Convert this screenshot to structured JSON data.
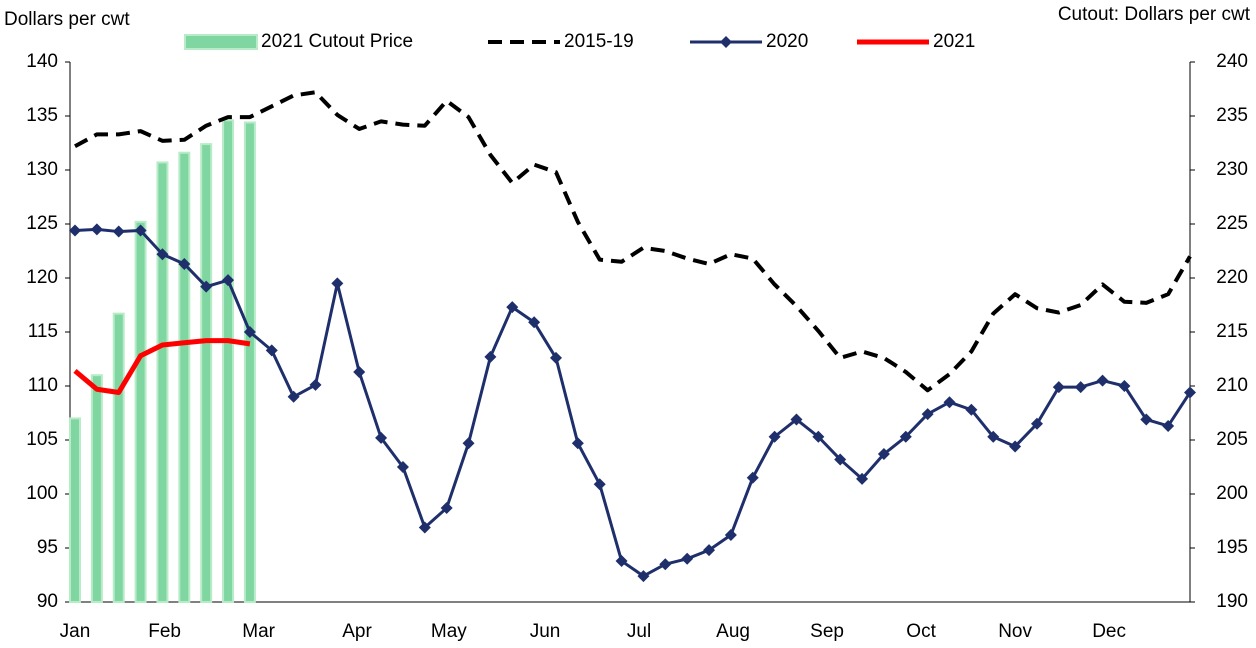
{
  "chart_data": {
    "type": "combo",
    "y_label": "Dollars per cwt",
    "y2_label": "Cutout: Dollars per cwt",
    "x": [
      1,
      2,
      3,
      4,
      5,
      6,
      7,
      8,
      9,
      10,
      11,
      12,
      13,
      14,
      15,
      16,
      17,
      18,
      19,
      20,
      21,
      22,
      23,
      24,
      25,
      26,
      27,
      28,
      29,
      30,
      31,
      32,
      33,
      34,
      35,
      36,
      37,
      38,
      39,
      40,
      41,
      42,
      43,
      44,
      45,
      46,
      47,
      48,
      49,
      50,
      51,
      52
    ],
    "xlim": [
      1,
      52
    ],
    "xticks": [
      {
        "value": 1,
        "label": "Jan"
      },
      {
        "value": 5.1,
        "label": "Feb"
      },
      {
        "value": 9.4,
        "label": "Mar"
      },
      {
        "value": 13.9,
        "label": "Apr"
      },
      {
        "value": 18.1,
        "label": "May"
      },
      {
        "value": 22.5,
        "label": "Jun"
      },
      {
        "value": 26.8,
        "label": "Jul"
      },
      {
        "value": 31.1,
        "label": "Aug"
      },
      {
        "value": 35.4,
        "label": "Sep"
      },
      {
        "value": 39.7,
        "label": "Oct"
      },
      {
        "value": 44,
        "label": "Nov"
      },
      {
        "value": 48.3,
        "label": "Dec"
      }
    ],
    "ylim": [
      90,
      140
    ],
    "yticks": [
      90,
      95,
      100,
      105,
      110,
      115,
      120,
      125,
      130,
      135,
      140
    ],
    "y2lim": [
      190,
      240
    ],
    "y2ticks": [
      190,
      195,
      200,
      205,
      210,
      215,
      220,
      225,
      230,
      235,
      240
    ],
    "series": [
      {
        "name": "2021 Cutout Price",
        "type": "bar",
        "axis": "y2",
        "color": "#7fd6a0",
        "values": [
          207.0,
          211.0,
          216.7,
          225.2,
          230.7,
          231.6,
          232.4,
          234.6,
          234.4,
          null,
          null,
          null,
          null,
          null,
          null,
          null,
          null,
          null,
          null,
          null,
          null,
          null,
          null,
          null,
          null,
          null,
          null,
          null,
          null,
          null,
          null,
          null,
          null,
          null,
          null,
          null,
          null,
          null,
          null,
          null,
          null,
          null,
          null,
          null,
          null,
          null,
          null,
          null,
          null,
          null,
          null,
          null
        ]
      },
      {
        "name": "2015-19",
        "type": "line",
        "dash": true,
        "color": "#000000",
        "values": [
          132.2,
          133.3,
          133.3,
          133.6,
          132.7,
          132.8,
          134.1,
          134.9,
          134.9,
          135.9,
          136.9,
          137.2,
          135.1,
          133.8,
          134.5,
          134.2,
          134.1,
          136.4,
          134.9,
          131.4,
          128.8,
          130.5,
          129.8,
          125.2,
          121.7,
          121.5,
          122.8,
          122.5,
          121.8,
          121.3,
          122.2,
          121.8,
          119.4,
          117.4,
          115.1,
          112.6,
          113.2,
          112.6,
          111.3,
          109.6,
          111.1,
          113.2,
          116.7,
          118.5,
          117.2,
          116.8,
          117.5,
          119.4,
          117.8,
          117.7,
          118.5,
          122.0
        ]
      },
      {
        "name": "2020",
        "type": "line",
        "marker": "diamond",
        "color": "#1f2f6b",
        "values": [
          124.4,
          124.5,
          124.3,
          124.4,
          122.2,
          121.3,
          119.2,
          119.8,
          115.0,
          113.3,
          109.0,
          110.1,
          119.5,
          111.3,
          105.2,
          102.5,
          96.9,
          98.7,
          104.7,
          112.7,
          117.3,
          115.9,
          112.6,
          104.7,
          100.9,
          93.8,
          92.4,
          93.5,
          94.0,
          94.8,
          96.2,
          101.5,
          105.3,
          106.9,
          105.3,
          103.2,
          101.4,
          103.7,
          105.3,
          107.4,
          108.5,
          107.8,
          105.3,
          104.4,
          106.5,
          109.9,
          109.9,
          110.5,
          110.0,
          106.9,
          106.3,
          109.4
        ]
      },
      {
        "name": "2021",
        "type": "line",
        "color": "#ff0000",
        "values": [
          111.4,
          109.7,
          109.4,
          112.8,
          113.8,
          114.0,
          114.2,
          114.2,
          113.9,
          null,
          null,
          null,
          null,
          null,
          null,
          null,
          null,
          null,
          null,
          null,
          null,
          null,
          null,
          null,
          null,
          null,
          null,
          null,
          null,
          null,
          null,
          null,
          null,
          null,
          null,
          null,
          null,
          null,
          null,
          null,
          null,
          null,
          null,
          null,
          null,
          null,
          null,
          null,
          null,
          null,
          null,
          null
        ]
      }
    ]
  }
}
